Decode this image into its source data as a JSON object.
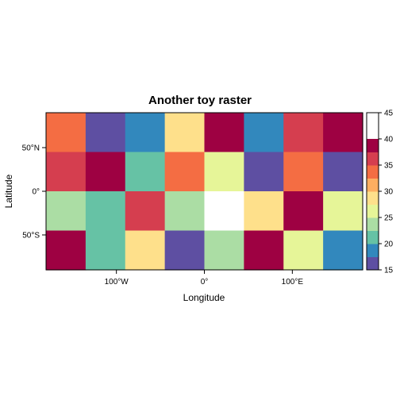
{
  "chart_data": {
    "type": "heatmap",
    "title": "Another toy raster",
    "xlabel": "Longitude",
    "ylabel": "Latitude",
    "xlim": [
      -180,
      180
    ],
    "ylim": [
      -90,
      90
    ],
    "x_ticks": [
      {
        "value": -100,
        "label": "100°W"
      },
      {
        "value": 0,
        "label": "0°"
      },
      {
        "value": 100,
        "label": "100°E"
      }
    ],
    "y_ticks": [
      {
        "value": 50,
        "label": "50°N"
      },
      {
        "value": 0,
        "label": "0°"
      },
      {
        "value": -50,
        "label": "50°S"
      }
    ],
    "columns": 8,
    "rows": 4,
    "values": [
      [
        35,
        15,
        20,
        30,
        40,
        20,
        37.5,
        45
      ],
      [
        37.5,
        45,
        22.5,
        35,
        27.5,
        15,
        35,
        15
      ],
      [
        25,
        22.5,
        37.5,
        25,
        null,
        30,
        40,
        27.5
      ],
      [
        45,
        22.5,
        30,
        15,
        25,
        40,
        27.5,
        20
      ]
    ],
    "colorbar": {
      "breaks": [
        15,
        17.5,
        20,
        22.5,
        25,
        27.5,
        30,
        32.5,
        35,
        37.5,
        40,
        42.5,
        45
      ],
      "colors": [
        "#5E4FA2",
        "#3288BD",
        "#66C2A5",
        "#ABDDA4",
        "#E6F598",
        "#FEE08B",
        "#FDAE61",
        "#F46D43",
        "#D53E4F",
        "#9E0142"
      ],
      "tick_labels": [
        "15",
        "20",
        "25",
        "30",
        "35",
        "40",
        "45"
      ]
    }
  }
}
